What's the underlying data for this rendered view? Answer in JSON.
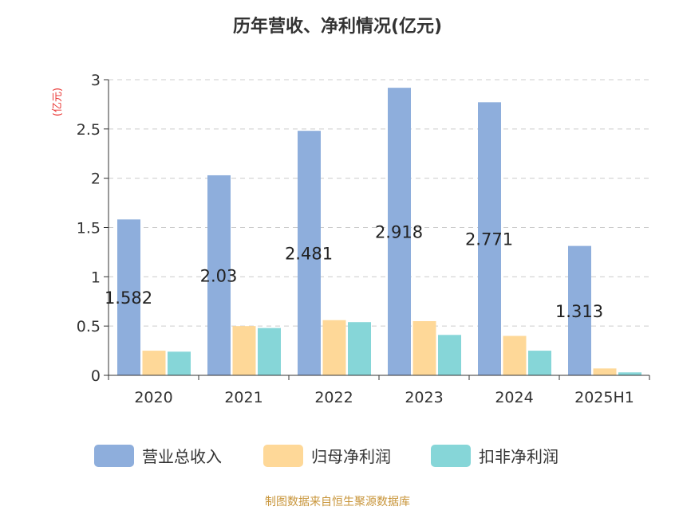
{
  "chart_data": {
    "type": "bar",
    "title": "历年营收、净利情况(亿元)",
    "ylabel": "(亿元)",
    "xlabel": "",
    "ylim": [
      0,
      3
    ],
    "yticks": [
      "0",
      "0.5",
      "1",
      "1.5",
      "2",
      "2.5",
      "3"
    ],
    "grid": true,
    "legend_position": "bottom",
    "categories": [
      "2020",
      "2021",
      "2022",
      "2023",
      "2024",
      "2025H1"
    ],
    "series": [
      {
        "name": "营业总收入",
        "color": "#8eaedc",
        "values": [
          1.582,
          2.03,
          2.481,
          2.918,
          2.771,
          1.313
        ],
        "labels": [
          "1.582",
          "2.03",
          "2.481",
          "2.918",
          "2.771",
          "1.313"
        ]
      },
      {
        "name": "归母净利润",
        "color": "#fed898",
        "values": [
          0.25,
          0.5,
          0.56,
          0.55,
          0.4,
          0.07
        ]
      },
      {
        "name": "扣非净利润",
        "color": "#86d6d8",
        "values": [
          0.24,
          0.48,
          0.54,
          0.41,
          0.25,
          0.03
        ]
      }
    ],
    "source": "制图数据来自恒生聚源数据库"
  }
}
